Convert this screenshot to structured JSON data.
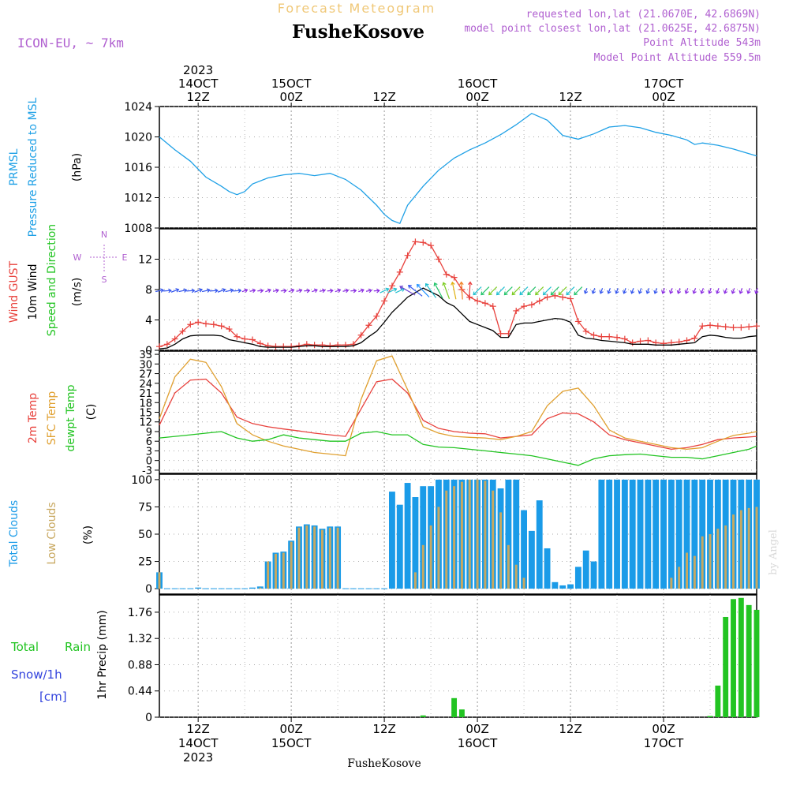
{
  "header": {
    "title": "Forecast Meteogram",
    "location": "FusheKosove",
    "model": "ICON-EU, ~ 7km",
    "requested": "requested lon,lat (21.0670E, 42.6869N)",
    "closest": "model point closest lon,lat (21.0625E, 42.6875N)",
    "point_altitude": "Point Altitude 543m",
    "model_altitude": "Model Point Altitude 559.5m",
    "credit": "by Angel",
    "footer": "FusheKosove"
  },
  "colors": {
    "pressure": "#1ea0e6",
    "gust": "#e8413c",
    "wind": "#000000",
    "t2m": "#e8413c",
    "sfc": "#e0a030",
    "dew": "#22c422",
    "total_clouds": "#1a9be8",
    "low_clouds": "#c8a860",
    "rain": "#22c422",
    "snow": "#3344dd",
    "meta": "#b060d0"
  },
  "time_axis": {
    "top": [
      {
        "x": 12,
        "lines": [
          "2023",
          "14OCT",
          "12Z"
        ]
      },
      {
        "x": 24,
        "lines": [
          "15OCT",
          "00Z"
        ]
      },
      {
        "x": 36,
        "lines": [
          "12Z"
        ]
      },
      {
        "x": 48,
        "lines": [
          "16OCT",
          "00Z"
        ]
      },
      {
        "x": 60,
        "lines": [
          "12Z"
        ]
      },
      {
        "x": 72,
        "lines": [
          "17OCT",
          "00Z"
        ]
      }
    ],
    "bottom": [
      {
        "x": 12,
        "lines": [
          "12Z",
          "14OCT",
          "2023"
        ]
      },
      {
        "x": 24,
        "lines": [
          "00Z",
          "15OCT"
        ]
      },
      {
        "x": 36,
        "lines": [
          "12Z"
        ]
      },
      {
        "x": 48,
        "lines": [
          "00Z",
          "16OCT"
        ]
      },
      {
        "x": 60,
        "lines": [
          "12Z"
        ]
      },
      {
        "x": 72,
        "lines": [
          "00Z",
          "17OCT"
        ]
      }
    ]
  },
  "chart_data": [
    {
      "type": "line",
      "panel": "pressure",
      "labels": [
        "PRMSL",
        "Pressure Reduced to MSL",
        "(hPa)"
      ],
      "ylim": [
        1008,
        1024
      ],
      "yticks": [
        "1008",
        "1012",
        "1016",
        "1020",
        "1024"
      ],
      "series": [
        {
          "name": "PRMSL",
          "x": [
            7,
            9,
            11,
            13,
            15,
            16,
            17,
            18,
            19,
            21,
            23,
            25,
            27,
            29,
            31,
            33,
            35,
            36,
            37,
            38,
            39,
            41,
            43,
            45,
            47,
            49,
            51,
            53,
            55,
            57,
            58,
            59,
            61,
            63,
            65,
            67,
            69,
            71,
            73,
            75,
            76,
            77,
            79,
            81,
            83,
            84
          ],
          "values": [
            1020,
            1018.3,
            1016.8,
            1014.7,
            1013.5,
            1012.8,
            1012.4,
            1012.8,
            1013.8,
            1014.6,
            1015.0,
            1015.2,
            1014.9,
            1015.2,
            1014.4,
            1013,
            1011,
            1009.8,
            1009,
            1008.6,
            1011,
            1013.5,
            1015.6,
            1017.2,
            1018.3,
            1019.2,
            1020.3,
            1021.6,
            1023.1,
            1022.2,
            1021.2,
            1020.2,
            1019.7,
            1020.4,
            1021.3,
            1021.5,
            1021.2,
            1020.6,
            1020.2,
            1019.6,
            1019.0,
            1019.2,
            1018.9,
            1018.4,
            1017.8,
            1017.5
          ]
        }
      ]
    },
    {
      "type": "line",
      "panel": "wind",
      "labels": [
        "Wind GUST",
        "10m Wind",
        "Speed and Direction",
        "(m/s)"
      ],
      "compass": [
        "N",
        "E",
        "S",
        "W"
      ],
      "ylim": [
        0,
        16
      ],
      "yticks": [
        "0",
        "4",
        "8",
        "12"
      ],
      "series": [
        {
          "name": "Wind GUST",
          "x": [
            7,
            8,
            9,
            10,
            11,
            12,
            13,
            14,
            15,
            16,
            17,
            18,
            19,
            20,
            21,
            22,
            23,
            24,
            25,
            26,
            27,
            28,
            29,
            30,
            31,
            32,
            33,
            34,
            35,
            36,
            37,
            38,
            39,
            40,
            41,
            42,
            43,
            44,
            45,
            46,
            47,
            48,
            49,
            50,
            51,
            52,
            53,
            54,
            55,
            56,
            57,
            58,
            59,
            60,
            61,
            62,
            63,
            64,
            65,
            66,
            67,
            68,
            69,
            70,
            71,
            72,
            73,
            74,
            75,
            76,
            77,
            78,
            79,
            80,
            81,
            82,
            83,
            84
          ],
          "values": [
            0.5,
            0.8,
            1.5,
            2.5,
            3.4,
            3.7,
            3.5,
            3.4,
            3.2,
            2.8,
            1.8,
            1.5,
            1.4,
            0.9,
            0.6,
            0.5,
            0.5,
            0.5,
            0.6,
            0.8,
            0.7,
            0.7,
            0.6,
            0.7,
            0.7,
            0.8,
            2.0,
            3.3,
            4.5,
            6.5,
            8.5,
            10.3,
            12.5,
            14.3,
            14.2,
            13.8,
            12.0,
            10.0,
            9.6,
            8.0,
            7.0,
            6.5,
            6.2,
            5.8,
            2.2,
            2.2,
            5.2,
            5.8,
            6.0,
            6.5,
            7.0,
            7.2,
            7.0,
            6.8,
            3.8,
            2.5,
            2.0,
            1.8,
            1.8,
            1.7,
            1.5,
            1.0,
            1.2,
            1.3,
            1.0,
            0.9,
            1.0,
            1.1,
            1.3,
            1.6,
            3.2,
            3.3,
            3.2,
            3.1,
            3.0,
            3.0,
            3.1,
            3.2
          ]
        },
        {
          "name": "10m Wind",
          "x": [
            7,
            8,
            9,
            10,
            11,
            12,
            13,
            14,
            15,
            16,
            17,
            18,
            19,
            20,
            21,
            22,
            23,
            24,
            25,
            26,
            27,
            28,
            29,
            30,
            31,
            32,
            33,
            34,
            35,
            36,
            37,
            38,
            39,
            40,
            41,
            42,
            43,
            44,
            45,
            46,
            47,
            48,
            49,
            50,
            51,
            52,
            53,
            54,
            55,
            56,
            57,
            58,
            59,
            60,
            61,
            62,
            63,
            64,
            65,
            66,
            67,
            68,
            69,
            70,
            71,
            72,
            73,
            74,
            75,
            76,
            77,
            78,
            79,
            80,
            81,
            82,
            83,
            84
          ],
          "values": [
            0.2,
            0.3,
            0.8,
            1.5,
            1.9,
            2.0,
            2.0,
            2.0,
            1.9,
            1.4,
            1.2,
            1.0,
            0.8,
            0.5,
            0.4,
            0.4,
            0.4,
            0.4,
            0.5,
            0.6,
            0.6,
            0.5,
            0.5,
            0.5,
            0.5,
            0.6,
            1.0,
            1.8,
            2.5,
            3.7,
            5.0,
            6.0,
            7.0,
            7.6,
            8.2,
            7.7,
            7.2,
            6.3,
            5.8,
            4.8,
            3.8,
            3.4,
            3.0,
            2.6,
            1.7,
            1.7,
            3.4,
            3.6,
            3.6,
            3.8,
            4.0,
            4.2,
            4.1,
            3.7,
            2.0,
            1.6,
            1.5,
            1.3,
            1.2,
            1.1,
            1.0,
            0.8,
            0.8,
            0.8,
            0.7,
            0.7,
            0.7,
            0.8,
            0.9,
            1.0,
            1.8,
            2.0,
            1.9,
            1.7,
            1.6,
            1.6,
            1.8,
            1.9
          ]
        }
      ]
    },
    {
      "type": "line",
      "panel": "temperature",
      "labels": [
        "2m Temp",
        "SFC Temp",
        "dewpt Temp",
        "(C)"
      ],
      "ylim": [
        -4,
        34
      ],
      "yticks": [
        "-3",
        "0",
        "3",
        "6",
        "9",
        "12",
        "15",
        "18",
        "21",
        "24",
        "27",
        "30",
        "33"
      ],
      "series": [
        {
          "name": "2m Temp",
          "x": [
            7,
            9,
            11,
            13,
            15,
            17,
            19,
            21,
            23,
            25,
            27,
            29,
            31,
            33,
            35,
            37,
            39,
            41,
            43,
            45,
            47,
            49,
            51,
            53,
            55,
            57,
            59,
            61,
            63,
            65,
            67,
            69,
            71,
            73,
            75,
            77,
            79,
            81,
            83,
            84
          ],
          "values": [
            11,
            21,
            25,
            25.3,
            21,
            13.5,
            11.5,
            10.5,
            9.8,
            9.2,
            8.5,
            8.0,
            7.5,
            16,
            24.5,
            25.3,
            21,
            12.5,
            10.0,
            9.0,
            8.5,
            8.3,
            7.0,
            7.5,
            8.0,
            13,
            14.8,
            14.5,
            12,
            8.0,
            6.5,
            5.5,
            4.5,
            3.5,
            4.0,
            5.0,
            6.5,
            7.0,
            7.3,
            7.5
          ]
        },
        {
          "name": "SFC Temp",
          "x": [
            7,
            9,
            11,
            13,
            15,
            17,
            19,
            21,
            23,
            25,
            27,
            29,
            31,
            33,
            35,
            37,
            39,
            41,
            43,
            45,
            47,
            49,
            51,
            53,
            55,
            57,
            59,
            61,
            63,
            65,
            67,
            69,
            71,
            73,
            75,
            77,
            79,
            81,
            83,
            84
          ],
          "values": [
            13,
            26,
            31.5,
            30.5,
            23,
            11.5,
            8.0,
            6.0,
            4.5,
            3.5,
            2.5,
            2.0,
            1.5,
            19,
            31,
            32.5,
            22,
            10.5,
            8.5,
            7.5,
            7.2,
            7.0,
            6.5,
            7.5,
            9,
            17,
            21.5,
            22.5,
            17,
            9.5,
            7.0,
            6.0,
            5.0,
            4.0,
            3.5,
            4.0,
            6.0,
            7.8,
            8.5,
            9
          ]
        },
        {
          "name": "dewpt Temp",
          "x": [
            7,
            9,
            11,
            13,
            15,
            17,
            19,
            21,
            23,
            25,
            27,
            29,
            31,
            33,
            35,
            37,
            39,
            41,
            43,
            45,
            47,
            49,
            51,
            53,
            55,
            57,
            59,
            61,
            63,
            65,
            67,
            69,
            71,
            73,
            75,
            77,
            79,
            81,
            83,
            84
          ],
          "values": [
            7,
            7.5,
            8.0,
            8.5,
            9.0,
            7.0,
            6.0,
            6.5,
            8.0,
            7.0,
            6.5,
            6.0,
            6.0,
            8.5,
            9.0,
            8.0,
            8.0,
            5.0,
            4.2,
            4.0,
            3.5,
            3.0,
            2.5,
            2.0,
            1.5,
            0.5,
            -0.5,
            -1.5,
            0.5,
            1.5,
            1.8,
            2.0,
            1.5,
            1.0,
            1.0,
            0.5,
            1.5,
            2.5,
            3.5,
            4.5
          ]
        }
      ]
    },
    {
      "type": "bar",
      "panel": "clouds",
      "labels": [
        "Total Clouds",
        "Low Clouds",
        "(%)"
      ],
      "ylim": [
        -5,
        105
      ],
      "yticks": [
        "0",
        "25",
        "50",
        "75",
        "100"
      ],
      "x": [
        7,
        8,
        9,
        10,
        11,
        12,
        13,
        14,
        15,
        16,
        17,
        18,
        19,
        20,
        21,
        22,
        23,
        24,
        25,
        26,
        27,
        28,
        29,
        30,
        31,
        32,
        33,
        34,
        35,
        36,
        37,
        38,
        39,
        40,
        41,
        42,
        43,
        44,
        45,
        46,
        47,
        48,
        49,
        50,
        51,
        52,
        53,
        54,
        55,
        56,
        57,
        58,
        59,
        60,
        61,
        62,
        63,
        64,
        65,
        66,
        67,
        68,
        69,
        70,
        71,
        72,
        73,
        74,
        75,
        76,
        77,
        78,
        79,
        80,
        81,
        82,
        83,
        84
      ],
      "series": [
        {
          "name": "Total Clouds",
          "values": [
            15,
            0,
            0,
            0,
            0,
            1,
            0,
            0,
            0,
            0,
            0,
            0,
            1,
            2,
            25,
            33,
            34,
            44,
            57,
            59,
            58,
            55,
            57,
            57,
            0,
            0,
            0,
            0,
            0,
            0,
            89,
            77,
            97,
            84,
            94,
            94,
            100,
            100,
            100,
            100,
            100,
            100,
            100,
            100,
            92,
            100,
            100,
            72,
            53,
            81,
            37,
            6,
            3,
            4,
            20,
            35,
            25,
            100,
            100,
            100,
            100,
            100,
            100,
            100,
            100,
            100,
            100,
            100,
            100,
            100,
            100,
            100,
            100,
            100,
            100,
            100,
            100,
            100
          ]
        },
        {
          "name": "Low Clouds",
          "values": [
            15,
            0,
            0,
            0,
            0,
            0,
            0,
            0,
            0,
            0,
            0,
            0,
            0,
            1,
            25,
            32,
            33,
            43,
            56,
            58,
            57,
            54,
            56,
            56,
            0,
            0,
            0,
            0,
            0,
            0,
            0,
            0,
            0,
            15,
            40,
            58,
            75,
            90,
            94,
            98,
            100,
            100,
            99,
            90,
            70,
            40,
            22,
            10,
            0,
            0,
            0,
            0,
            0,
            0,
            0,
            0,
            0,
            0,
            0,
            0,
            0,
            0,
            0,
            0,
            0,
            0,
            10,
            20,
            33,
            30,
            48,
            50,
            55,
            58,
            68,
            72,
            74,
            75
          ]
        }
      ]
    },
    {
      "type": "bar",
      "panel": "precip",
      "labels": [
        "Total",
        "Rain",
        "Snow/1h",
        "[cm]",
        "1hr Precip (mm)"
      ],
      "ylim": [
        0,
        2.05
      ],
      "yticks": [
        "0",
        "0.44",
        "0.88",
        "1.32",
        "1.76"
      ],
      "x": [
        41,
        45,
        46,
        78,
        79,
        80,
        81,
        82,
        83,
        84
      ],
      "series": [
        {
          "name": "Total Rain",
          "values": [
            0.03,
            0.32,
            0.13,
            0.02,
            0.53,
            1.68,
            1.98,
            2.0,
            1.88,
            1.8
          ]
        }
      ]
    }
  ]
}
